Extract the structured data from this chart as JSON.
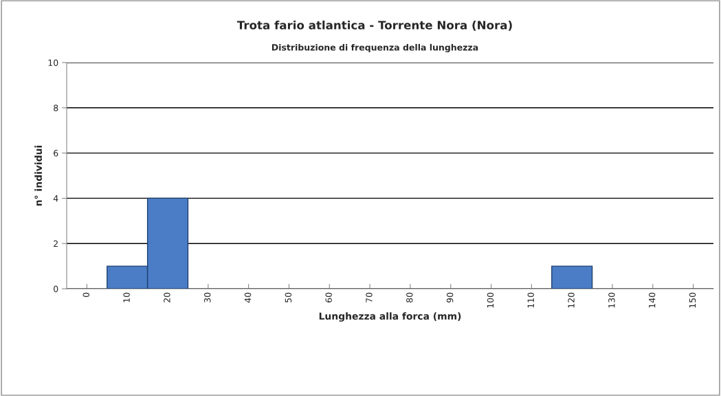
{
  "chart_data": {
    "type": "bar",
    "title": "Trota fario atlantica - Torrente Nora (Nora)",
    "subtitle": "Distribuzione di frequenza della lunghezza",
    "xlabel": "Lunghezza alla forca (mm)",
    "ylabel": "n° individui",
    "categories": [
      "0",
      "10",
      "20",
      "30",
      "40",
      "50",
      "60",
      "70",
      "80",
      "90",
      "100",
      "110",
      "120",
      "130",
      "140",
      "150"
    ],
    "values": [
      0,
      1,
      4,
      0,
      0,
      0,
      0,
      0,
      0,
      0,
      0,
      0,
      1,
      0,
      0,
      0
    ],
    "color": "#4a7dc6",
    "ylim": [
      0,
      10
    ],
    "yticks": [
      0,
      2,
      4,
      6,
      8,
      10
    ],
    "grid": "y"
  }
}
